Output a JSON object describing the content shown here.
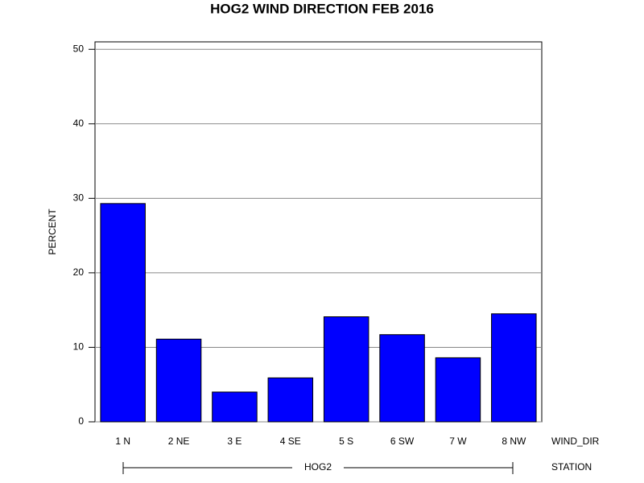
{
  "chart_data": {
    "type": "bar",
    "title": "HOG2 WIND DIRECTION FEB 2016",
    "y_label": "PERCENT",
    "x_label": "WIND_DIR",
    "group_label": "STATION",
    "group": "HOG2",
    "categories": [
      "1 N",
      "2 NE",
      "3 E",
      "4 SE",
      "5 S",
      "6 SW",
      "7 W",
      "8 NW"
    ],
    "values": [
      29.3,
      11.1,
      4.0,
      5.9,
      14.1,
      11.7,
      8.6,
      14.5
    ],
    "color": "#0000ff",
    "ylim": [
      0,
      51
    ],
    "yticks": [
      0,
      10,
      20,
      30,
      40,
      50
    ],
    "grid": true
  }
}
